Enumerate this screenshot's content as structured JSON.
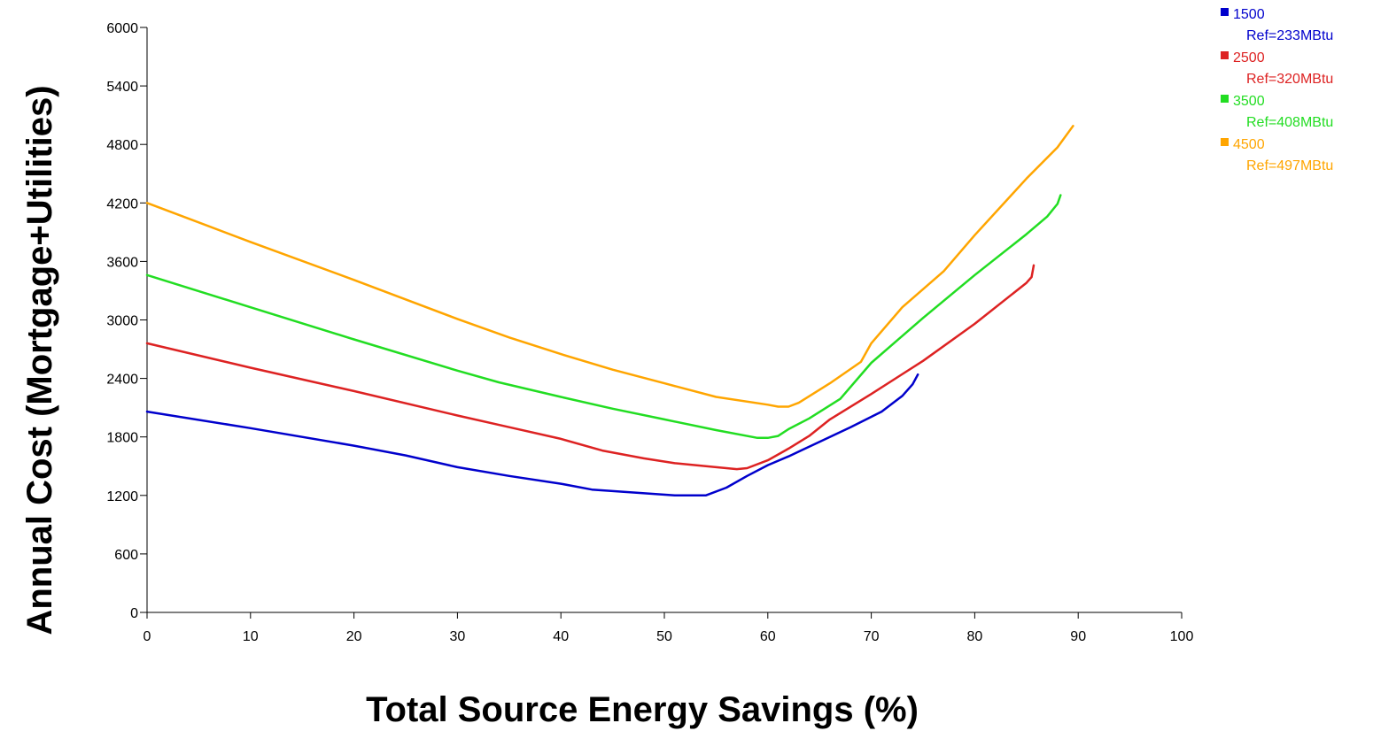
{
  "chart_data": {
    "type": "line",
    "title": "",
    "xlabel": "Total Source Energy Savings (%)",
    "ylabel": "Annual Cost (Mortgage+Utilities)",
    "xlim": [
      0,
      100
    ],
    "ylim": [
      0,
      6000
    ],
    "x_ticks": [
      0,
      10,
      20,
      30,
      40,
      50,
      60,
      70,
      80,
      90,
      100
    ],
    "y_ticks": [
      0,
      600,
      1200,
      1800,
      2400,
      3000,
      3600,
      4200,
      4800,
      5400,
      6000
    ],
    "grid": false,
    "legend_position": "top-right",
    "series": [
      {
        "name": "1500",
        "sublabel": "Ref=233MBtu",
        "color": "#0000cc",
        "points": [
          [
            0,
            2060
          ],
          [
            10,
            1890
          ],
          [
            20,
            1710
          ],
          [
            25,
            1610
          ],
          [
            30,
            1490
          ],
          [
            35,
            1400
          ],
          [
            40,
            1320
          ],
          [
            43,
            1260
          ],
          [
            47,
            1230
          ],
          [
            51,
            1200
          ],
          [
            54,
            1200
          ],
          [
            56,
            1280
          ],
          [
            58,
            1400
          ],
          [
            60,
            1510
          ],
          [
            62,
            1600
          ],
          [
            65,
            1750
          ],
          [
            68,
            1900
          ],
          [
            71,
            2060
          ],
          [
            73,
            2220
          ],
          [
            74,
            2340
          ],
          [
            74.5,
            2440
          ]
        ]
      },
      {
        "name": "2500",
        "sublabel": "Ref=320MBtu",
        "color": "#dd2222",
        "points": [
          [
            0,
            2760
          ],
          [
            10,
            2510
          ],
          [
            20,
            2270
          ],
          [
            30,
            2020
          ],
          [
            35,
            1900
          ],
          [
            40,
            1780
          ],
          [
            44,
            1660
          ],
          [
            48,
            1580
          ],
          [
            51,
            1530
          ],
          [
            55,
            1490
          ],
          [
            57,
            1470
          ],
          [
            58,
            1480
          ],
          [
            60,
            1560
          ],
          [
            62,
            1680
          ],
          [
            64,
            1810
          ],
          [
            66,
            1980
          ],
          [
            70,
            2240
          ],
          [
            75,
            2580
          ],
          [
            80,
            2960
          ],
          [
            85,
            3380
          ],
          [
            85.5,
            3440
          ],
          [
            85.7,
            3560
          ]
        ]
      },
      {
        "name": "3500",
        "sublabel": "Ref=408MBtu",
        "color": "#22dd22",
        "points": [
          [
            0,
            3460
          ],
          [
            10,
            3130
          ],
          [
            20,
            2800
          ],
          [
            30,
            2480
          ],
          [
            34,
            2360
          ],
          [
            40,
            2210
          ],
          [
            45,
            2090
          ],
          [
            50,
            1980
          ],
          [
            55,
            1870
          ],
          [
            59,
            1790
          ],
          [
            60,
            1790
          ],
          [
            61,
            1810
          ],
          [
            62,
            1880
          ],
          [
            64,
            1990
          ],
          [
            67,
            2190
          ],
          [
            70,
            2560
          ],
          [
            75,
            3020
          ],
          [
            80,
            3460
          ],
          [
            85,
            3880
          ],
          [
            87,
            4060
          ],
          [
            88,
            4190
          ],
          [
            88.3,
            4280
          ]
        ]
      },
      {
        "name": "4500",
        "sublabel": "Ref=497MBtu",
        "color": "#ffa500",
        "points": [
          [
            0,
            4200
          ],
          [
            10,
            3800
          ],
          [
            20,
            3410
          ],
          [
            30,
            3010
          ],
          [
            35,
            2820
          ],
          [
            40,
            2650
          ],
          [
            45,
            2490
          ],
          [
            50,
            2350
          ],
          [
            55,
            2210
          ],
          [
            60,
            2130
          ],
          [
            61,
            2110
          ],
          [
            62,
            2110
          ],
          [
            63,
            2150
          ],
          [
            66,
            2350
          ],
          [
            69,
            2570
          ],
          [
            70,
            2760
          ],
          [
            73,
            3130
          ],
          [
            77,
            3500
          ],
          [
            80,
            3870
          ],
          [
            85,
            4450
          ],
          [
            88,
            4770
          ],
          [
            89.5,
            4990
          ]
        ]
      }
    ]
  }
}
